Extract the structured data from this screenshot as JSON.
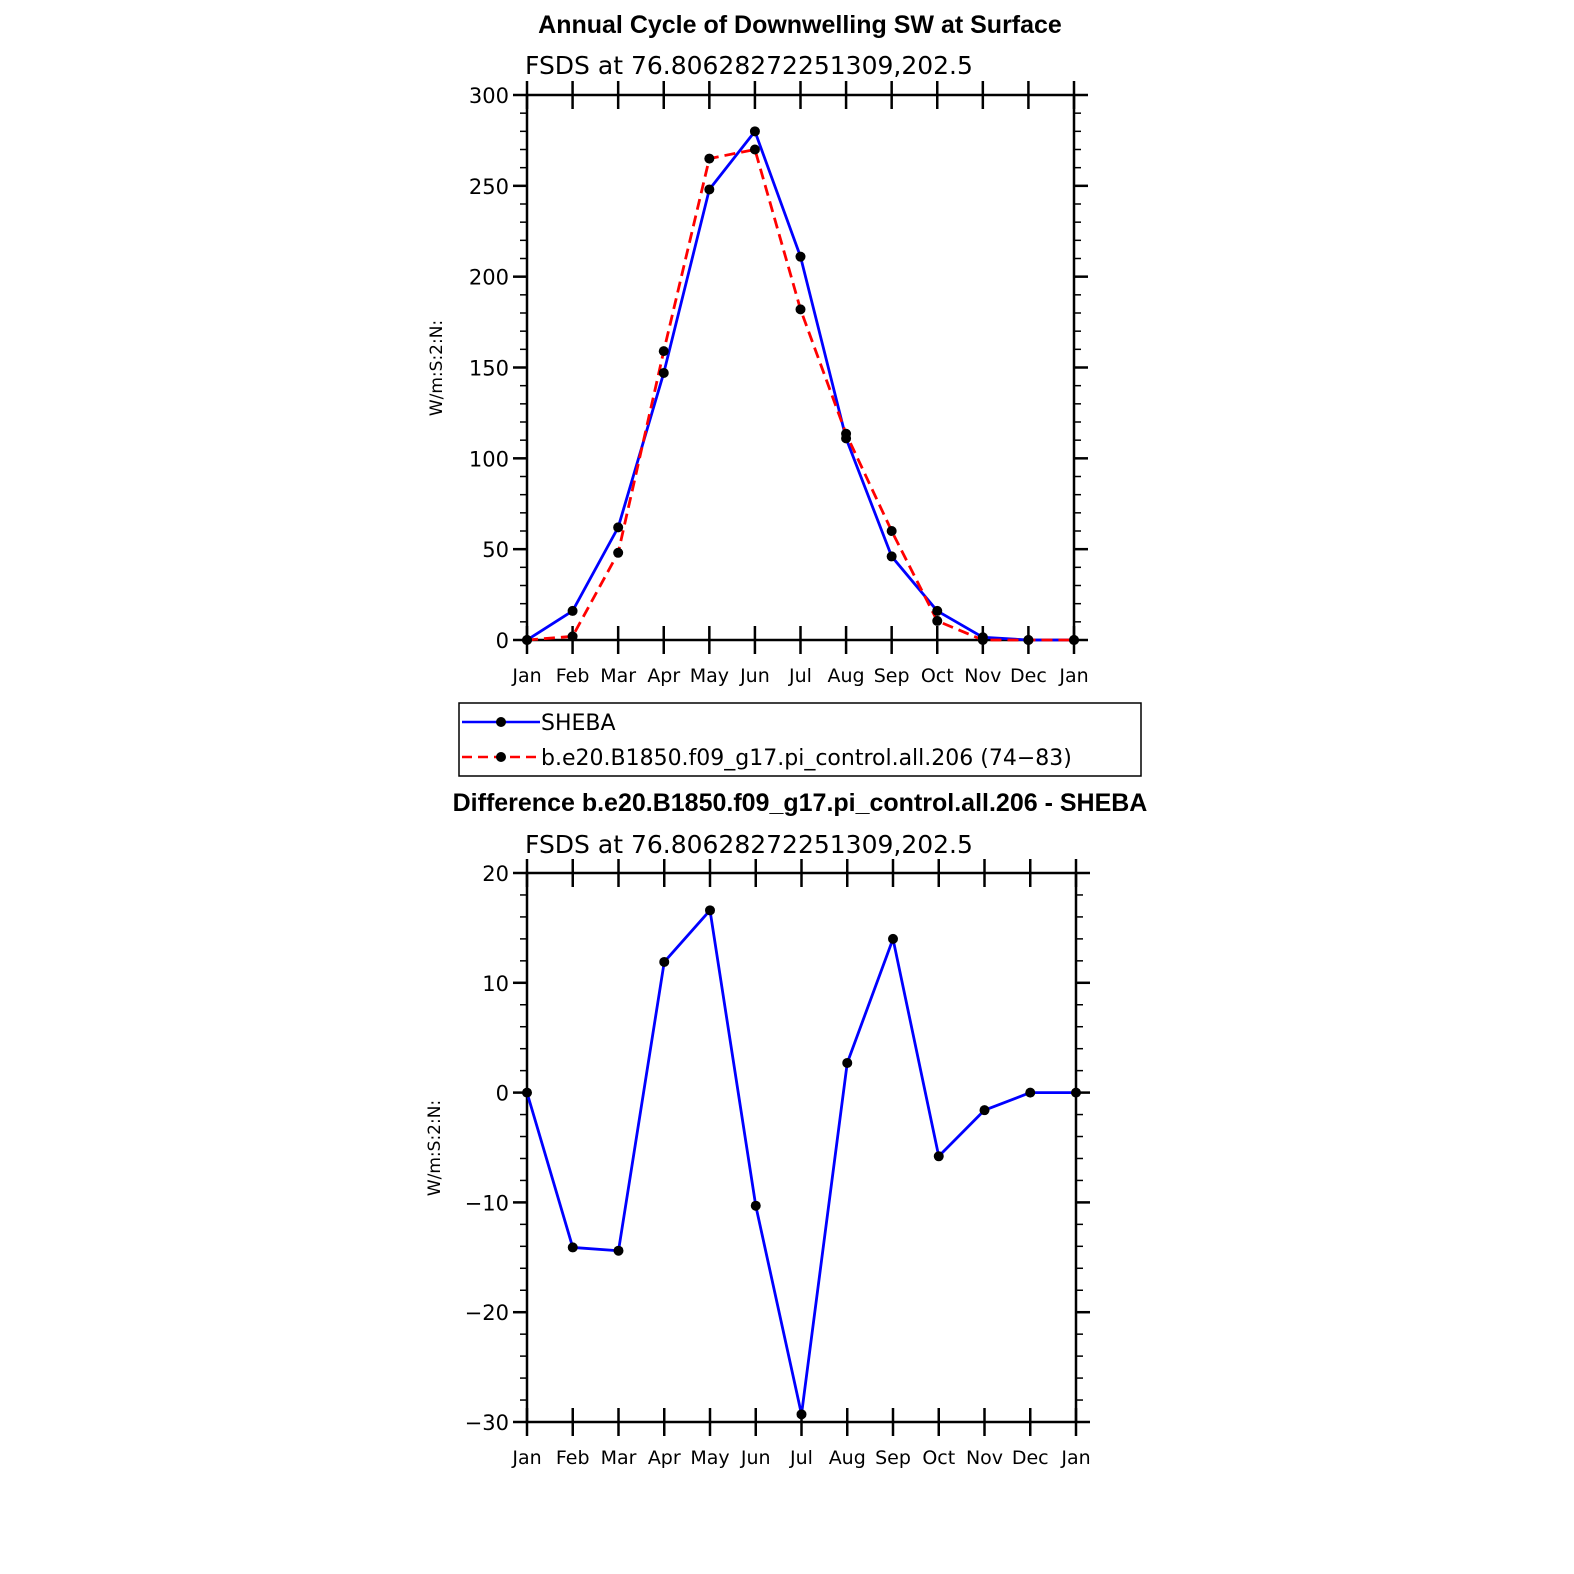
{
  "chart_data": [
    {
      "type": "line",
      "title": "Annual Cycle of Downwelling SW at Surface",
      "subtitle": "FSDS at 76.80628272251309,202.5",
      "xlabel": "",
      "ylabel": "W/m:S:2:N:",
      "categories": [
        "Jan",
        "Feb",
        "Mar",
        "Apr",
        "May",
        "Jun",
        "Jul",
        "Aug",
        "Sep",
        "Oct",
        "Nov",
        "Dec",
        "Jan"
      ],
      "ylim": [
        0,
        300
      ],
      "yticks": [
        0,
        50,
        100,
        150,
        200,
        250,
        300
      ],
      "grid": false,
      "legend_placement": "below",
      "series": [
        {
          "name": "SHEBA",
          "color": "#0000ff",
          "dash": "solid",
          "marker": "dot",
          "values": [
            0,
            16,
            62,
            147,
            248,
            280,
            211,
            111,
            46,
            16,
            1.5,
            0,
            0
          ]
        },
        {
          "name": "b.e20.B1850.f09_g17.pi_control.all.206 (74−83)",
          "color": "#ff0000",
          "dash": "dashed",
          "marker": "dot",
          "values": [
            0,
            2,
            48,
            159,
            265,
            270,
            182,
            113.5,
            60,
            10.5,
            0,
            0,
            0
          ]
        }
      ]
    },
    {
      "type": "line",
      "title": "Difference b.e20.B1850.f09_g17.pi_control.all.206 - SHEBA",
      "subtitle": "FSDS at 76.80628272251309,202.5",
      "xlabel": "",
      "ylabel": "W/m:S:2:N:",
      "categories": [
        "Jan",
        "Feb",
        "Mar",
        "Apr",
        "May",
        "Jun",
        "Jul",
        "Aug",
        "Sep",
        "Oct",
        "Nov",
        "Dec",
        "Jan"
      ],
      "ylim": [
        -30,
        20
      ],
      "yticks": [
        -30,
        -20,
        -10,
        0,
        10,
        20
      ],
      "ytick_labels": [
        "−30",
        "−20",
        "−10",
        "0",
        "10",
        "20"
      ],
      "grid": false,
      "series": [
        {
          "color": "#0000ff",
          "dash": "solid",
          "marker": "dot",
          "values": [
            0,
            -14.1,
            -14.4,
            11.9,
            16.6,
            -10.3,
            -29.3,
            2.7,
            14.0,
            -5.8,
            -1.6,
            0,
            0
          ]
        }
      ]
    }
  ]
}
